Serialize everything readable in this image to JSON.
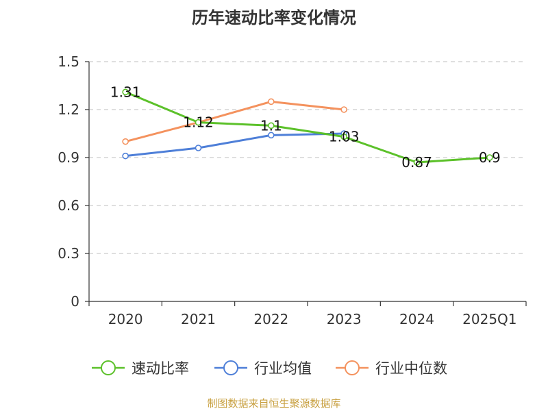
{
  "chart_data": {
    "type": "line",
    "title": "历年速动比率变化情况",
    "categories": [
      "2020",
      "2021",
      "2022",
      "2023",
      "2024",
      "2025Q1"
    ],
    "ylim": [
      0,
      1.5
    ],
    "yticks": [
      "0",
      "0.3",
      "0.6",
      "0.9",
      "1.2",
      "1.5"
    ],
    "ytick_values": [
      0,
      0.3,
      0.6,
      0.9,
      1.2,
      1.5
    ],
    "grid": true,
    "legend_position": "bottom",
    "series": [
      {
        "name": "速动比率",
        "color": "#5cc12a",
        "values": [
          1.31,
          1.12,
          1.1,
          1.03,
          0.87,
          0.9
        ],
        "labels": [
          "1.31",
          "1.12",
          "1.1",
          "1.03",
          "0.87",
          "0.9"
        ]
      },
      {
        "name": "行业均值",
        "color": "#4e7fd8",
        "values": [
          0.91,
          0.96,
          1.04,
          1.05,
          null,
          null
        ]
      },
      {
        "name": "行业中位数",
        "color": "#f4925e",
        "values": [
          1.0,
          1.12,
          1.25,
          1.2,
          null,
          null
        ]
      }
    ],
    "source": "制图数据来自恒生聚源数据库"
  }
}
